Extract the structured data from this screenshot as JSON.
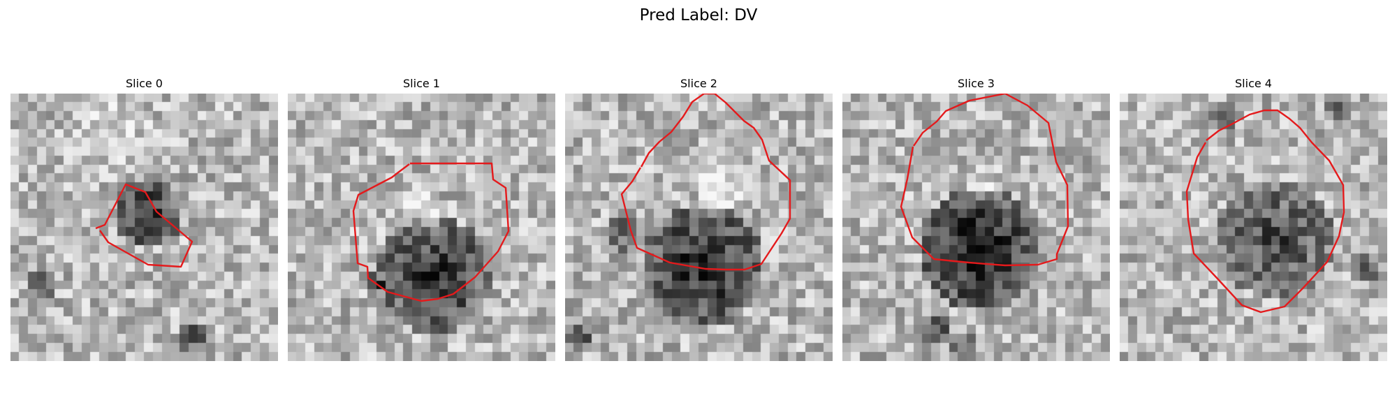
{
  "figure": {
    "title": "Pred Label: DV"
  },
  "style": {
    "contour_color": "#e41a1c"
  },
  "slices": [
    {
      "title": "Slice 0"
    },
    {
      "title": "Slice 1"
    },
    {
      "title": "Slice 2"
    },
    {
      "title": "Slice 3"
    },
    {
      "title": "Slice 4"
    }
  ]
}
